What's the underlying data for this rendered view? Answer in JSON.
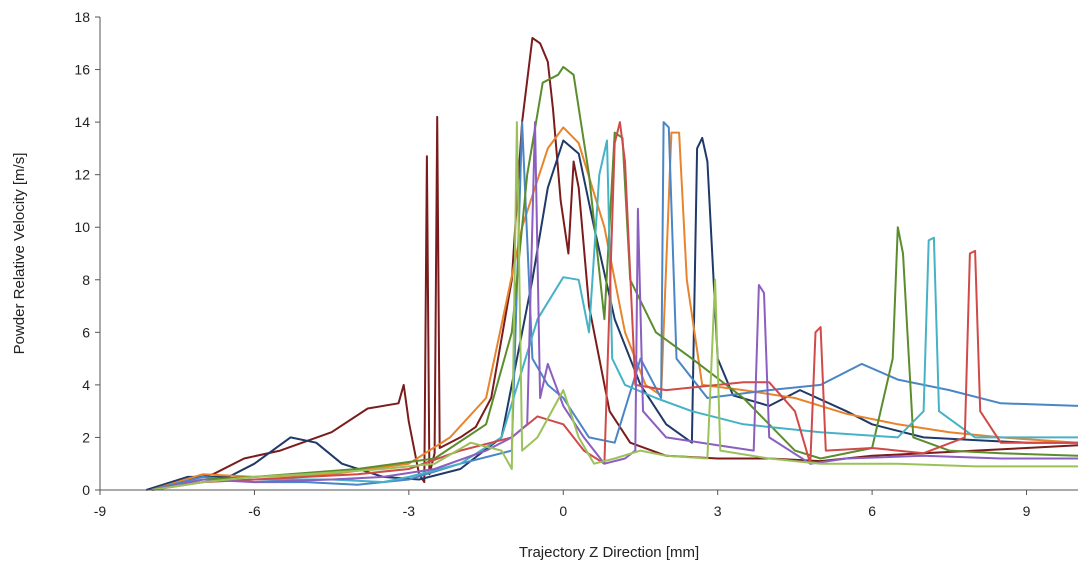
{
  "chart_data": {
    "type": "line",
    "title": "",
    "xlabel": "Trajectory Z Direction [mm]",
    "ylabel": "Powder Relative Velocity [m/s]",
    "xlim": [
      -9,
      10
    ],
    "ylim": [
      0,
      18
    ],
    "xticks": [
      -9,
      -6,
      -3,
      0,
      3,
      6,
      9
    ],
    "yticks": [
      0,
      2,
      4,
      6,
      8,
      10,
      12,
      14,
      16,
      18
    ],
    "grid": false,
    "legend": "none",
    "series": [
      {
        "color": "#7b1c1c",
        "points": [
          [
            -8,
            0
          ],
          [
            -7.5,
            0.3
          ],
          [
            -6.8,
            0.6
          ],
          [
            -6.2,
            1.2
          ],
          [
            -5.5,
            1.5
          ],
          [
            -4.5,
            2.2
          ],
          [
            -3.8,
            3.1
          ],
          [
            -3.2,
            3.3
          ],
          [
            -3.1,
            4.0
          ],
          [
            -3.0,
            2.6
          ],
          [
            -2.8,
            0.6
          ],
          [
            -2.7,
            0.3
          ],
          [
            -2.65,
            12.7
          ],
          [
            -2.6,
            0.6
          ],
          [
            -2.5,
            1.4
          ],
          [
            -2.45,
            14.2
          ],
          [
            -2.4,
            1.6
          ],
          [
            -2.0,
            2.0
          ],
          [
            -1.7,
            2.4
          ],
          [
            -1.4,
            3.5
          ],
          [
            -1.0,
            8.0
          ],
          [
            -0.8,
            14.0
          ],
          [
            -0.6,
            17.2
          ],
          [
            -0.45,
            17.0
          ],
          [
            -0.3,
            16.3
          ],
          [
            -0.2,
            14.5
          ],
          [
            -0.05,
            11.0
          ],
          [
            0.1,
            9.0
          ],
          [
            0.2,
            12.5
          ],
          [
            0.3,
            11.5
          ],
          [
            0.5,
            7.0
          ],
          [
            0.9,
            3.0
          ],
          [
            1.3,
            1.8
          ],
          [
            2.0,
            1.3
          ],
          [
            3.0,
            1.2
          ],
          [
            4.0,
            1.2
          ],
          [
            5.0,
            1.1
          ],
          [
            6.0,
            1.3
          ],
          [
            7.0,
            1.4
          ],
          [
            8.0,
            1.5
          ],
          [
            9.0,
            1.6
          ],
          [
            10,
            1.7
          ]
        ]
      },
      {
        "color": "#1f3a68",
        "points": [
          [
            -8.1,
            0
          ],
          [
            -7.3,
            0.5
          ],
          [
            -6.5,
            0.5
          ],
          [
            -6.0,
            1.0
          ],
          [
            -5.3,
            2.0
          ],
          [
            -4.8,
            1.8
          ],
          [
            -4.3,
            1.0
          ],
          [
            -3.5,
            0.5
          ],
          [
            -2.8,
            0.4
          ],
          [
            -2.0,
            0.8
          ],
          [
            -1.2,
            2.0
          ],
          [
            -0.6,
            8.0
          ],
          [
            -0.3,
            11.5
          ],
          [
            0,
            13.3
          ],
          [
            0.3,
            12.8
          ],
          [
            0.6,
            10.0
          ],
          [
            1.0,
            6.5
          ],
          [
            1.5,
            4.0
          ],
          [
            2.0,
            2.5
          ],
          [
            2.5,
            1.8
          ],
          [
            2.6,
            13.0
          ],
          [
            2.7,
            13.4
          ],
          [
            2.8,
            12.5
          ],
          [
            3.0,
            5.0
          ],
          [
            3.3,
            3.6
          ],
          [
            4.0,
            3.2
          ],
          [
            4.6,
            3.8
          ],
          [
            5.5,
            3.0
          ],
          [
            6.0,
            2.5
          ],
          [
            7.0,
            2.0
          ],
          [
            8.0,
            1.9
          ],
          [
            9.0,
            1.8
          ],
          [
            10,
            1.8
          ]
        ]
      },
      {
        "color": "#e8842c",
        "points": [
          [
            -8,
            0
          ],
          [
            -7.0,
            0.6
          ],
          [
            -6.0,
            0.5
          ],
          [
            -4.5,
            0.6
          ],
          [
            -3.0,
            1.0
          ],
          [
            -2.2,
            2.0
          ],
          [
            -1.5,
            3.5
          ],
          [
            -0.8,
            10.0
          ],
          [
            -0.3,
            13.0
          ],
          [
            0,
            13.8
          ],
          [
            0.3,
            13.2
          ],
          [
            0.8,
            10.0
          ],
          [
            1.2,
            6.0
          ],
          [
            1.6,
            4.0
          ],
          [
            1.9,
            3.6
          ],
          [
            2.1,
            13.6
          ],
          [
            2.25,
            13.6
          ],
          [
            2.4,
            8.0
          ],
          [
            2.7,
            4.0
          ],
          [
            3.5,
            3.8
          ],
          [
            4.5,
            3.5
          ],
          [
            5.5,
            2.9
          ],
          [
            6.5,
            2.5
          ],
          [
            7.5,
            2.2
          ],
          [
            8.5,
            2.0
          ],
          [
            10,
            1.8
          ]
        ]
      },
      {
        "color": "#4a86c6",
        "points": [
          [
            -8,
            0
          ],
          [
            -7.0,
            0.5
          ],
          [
            -6.0,
            0.3
          ],
          [
            -5.0,
            0.3
          ],
          [
            -4.0,
            0.2
          ],
          [
            -3.0,
            0.4
          ],
          [
            -2.0,
            1.0
          ],
          [
            -1.0,
            1.5
          ],
          [
            -0.8,
            14.0
          ],
          [
            -0.6,
            5.0
          ],
          [
            -0.3,
            4.0
          ],
          [
            0,
            3.5
          ],
          [
            0.5,
            2.0
          ],
          [
            1.0,
            1.8
          ],
          [
            1.5,
            5.0
          ],
          [
            1.9,
            3.5
          ],
          [
            1.95,
            14.0
          ],
          [
            2.05,
            13.8
          ],
          [
            2.2,
            5.0
          ],
          [
            2.8,
            3.5
          ],
          [
            4.0,
            3.8
          ],
          [
            5.0,
            4.0
          ],
          [
            5.8,
            4.8
          ],
          [
            6.5,
            4.2
          ],
          [
            7.5,
            3.8
          ],
          [
            8.5,
            3.3
          ],
          [
            10,
            3.2
          ]
        ]
      },
      {
        "color": "#5b8d2e",
        "points": [
          [
            -8,
            0
          ],
          [
            -7.0,
            0.4
          ],
          [
            -6.0,
            0.5
          ],
          [
            -4.0,
            0.8
          ],
          [
            -2.5,
            1.2
          ],
          [
            -1.5,
            2.5
          ],
          [
            -1.0,
            6.0
          ],
          [
            -0.7,
            12.0
          ],
          [
            -0.4,
            15.5
          ],
          [
            -0.1,
            15.8
          ],
          [
            0,
            16.1
          ],
          [
            0.2,
            15.8
          ],
          [
            0.5,
            12.0
          ],
          [
            0.8,
            6.5
          ],
          [
            1.0,
            13.6
          ],
          [
            1.15,
            13.4
          ],
          [
            1.3,
            8.0
          ],
          [
            1.8,
            6.0
          ],
          [
            2.5,
            5.0
          ],
          [
            3.5,
            3.5
          ],
          [
            4.5,
            1.5
          ],
          [
            5.0,
            1.2
          ],
          [
            6.0,
            1.6
          ],
          [
            6.4,
            5.0
          ],
          [
            6.5,
            10.0
          ],
          [
            6.6,
            9.0
          ],
          [
            6.8,
            2.0
          ],
          [
            7.5,
            1.5
          ],
          [
            8.5,
            1.4
          ],
          [
            10,
            1.3
          ]
        ]
      },
      {
        "color": "#46b2c6",
        "points": [
          [
            -8,
            0
          ],
          [
            -7.0,
            0.3
          ],
          [
            -6.0,
            0.4
          ],
          [
            -4.5,
            0.4
          ],
          [
            -3.5,
            0.3
          ],
          [
            -3.0,
            0.5
          ],
          [
            -2.0,
            1.0
          ],
          [
            -1.2,
            2.0
          ],
          [
            -0.5,
            6.5
          ],
          [
            0,
            8.1
          ],
          [
            0.3,
            8.0
          ],
          [
            0.5,
            6.0
          ],
          [
            0.7,
            12.0
          ],
          [
            0.85,
            13.3
          ],
          [
            0.95,
            5.0
          ],
          [
            1.2,
            4.0
          ],
          [
            1.8,
            3.5
          ],
          [
            2.5,
            3.0
          ],
          [
            3.5,
            2.5
          ],
          [
            5.0,
            2.2
          ],
          [
            6.5,
            2.0
          ],
          [
            7.0,
            3.0
          ],
          [
            7.1,
            9.5
          ],
          [
            7.2,
            9.6
          ],
          [
            7.3,
            3.0
          ],
          [
            8.0,
            2.0
          ],
          [
            10,
            2.0
          ]
        ]
      },
      {
        "color": "#d04a4a",
        "points": [
          [
            -8,
            0
          ],
          [
            -7.0,
            0.3
          ],
          [
            -6.0,
            0.4
          ],
          [
            -5.0,
            0.5
          ],
          [
            -4.0,
            0.6
          ],
          [
            -3.0,
            0.8
          ],
          [
            -2.0,
            1.5
          ],
          [
            -1.0,
            2.0
          ],
          [
            -0.5,
            2.8
          ],
          [
            0,
            2.5
          ],
          [
            0.4,
            1.5
          ],
          [
            0.8,
            1.0
          ],
          [
            1.0,
            13.2
          ],
          [
            1.1,
            14.0
          ],
          [
            1.2,
            12.5
          ],
          [
            1.4,
            4.0
          ],
          [
            2.0,
            3.8
          ],
          [
            3.0,
            4.0
          ],
          [
            3.5,
            4.1
          ],
          [
            4.0,
            4.1
          ],
          [
            4.5,
            3.0
          ],
          [
            4.8,
            1.0
          ],
          [
            4.9,
            6.0
          ],
          [
            5.0,
            6.2
          ],
          [
            5.1,
            1.5
          ],
          [
            6.0,
            1.6
          ],
          [
            7.0,
            1.4
          ],
          [
            7.8,
            2.0
          ],
          [
            7.9,
            9.0
          ],
          [
            8.0,
            9.1
          ],
          [
            8.1,
            3.0
          ],
          [
            8.5,
            1.8
          ],
          [
            10,
            1.8
          ]
        ]
      },
      {
        "color": "#8b5fbf",
        "points": [
          [
            -8,
            0
          ],
          [
            -7.0,
            0.4
          ],
          [
            -6.0,
            0.3
          ],
          [
            -4.5,
            0.4
          ],
          [
            -3.5,
            0.5
          ],
          [
            -2.5,
            0.8
          ],
          [
            -1.5,
            1.5
          ],
          [
            -1.0,
            2.0
          ],
          [
            -0.7,
            2.5
          ],
          [
            -0.55,
            14.0
          ],
          [
            -0.45,
            3.5
          ],
          [
            -0.3,
            4.8
          ],
          [
            0,
            3.2
          ],
          [
            0.4,
            2.0
          ],
          [
            0.8,
            1.0
          ],
          [
            1.2,
            1.2
          ],
          [
            1.4,
            1.5
          ],
          [
            1.45,
            10.7
          ],
          [
            1.55,
            3.0
          ],
          [
            2.0,
            2.0
          ],
          [
            3.0,
            1.7
          ],
          [
            3.7,
            1.5
          ],
          [
            3.8,
            7.8
          ],
          [
            3.9,
            7.5
          ],
          [
            4.0,
            2.0
          ],
          [
            4.8,
            1.0
          ],
          [
            5.5,
            1.2
          ],
          [
            7.0,
            1.3
          ],
          [
            8.5,
            1.2
          ],
          [
            10,
            1.2
          ]
        ]
      },
      {
        "color": "#9bc25a",
        "points": [
          [
            -8,
            0
          ],
          [
            -7.0,
            0.3
          ],
          [
            -6.0,
            0.5
          ],
          [
            -5.0,
            0.6
          ],
          [
            -3.5,
            0.8
          ],
          [
            -2.5,
            1.0
          ],
          [
            -1.8,
            1.8
          ],
          [
            -1.2,
            1.5
          ],
          [
            -1.0,
            0.8
          ],
          [
            -0.9,
            14.0
          ],
          [
            -0.8,
            1.5
          ],
          [
            -0.5,
            2.0
          ],
          [
            0,
            3.8
          ],
          [
            0.3,
            2.0
          ],
          [
            0.6,
            1.0
          ],
          [
            1.0,
            1.2
          ],
          [
            1.5,
            1.5
          ],
          [
            2.0,
            1.3
          ],
          [
            2.8,
            1.2
          ],
          [
            2.95,
            8.0
          ],
          [
            3.05,
            1.5
          ],
          [
            4.0,
            1.2
          ],
          [
            5.0,
            1.0
          ],
          [
            6.5,
            1.0
          ],
          [
            8.0,
            0.9
          ],
          [
            10,
            0.9
          ]
        ]
      }
    ]
  }
}
